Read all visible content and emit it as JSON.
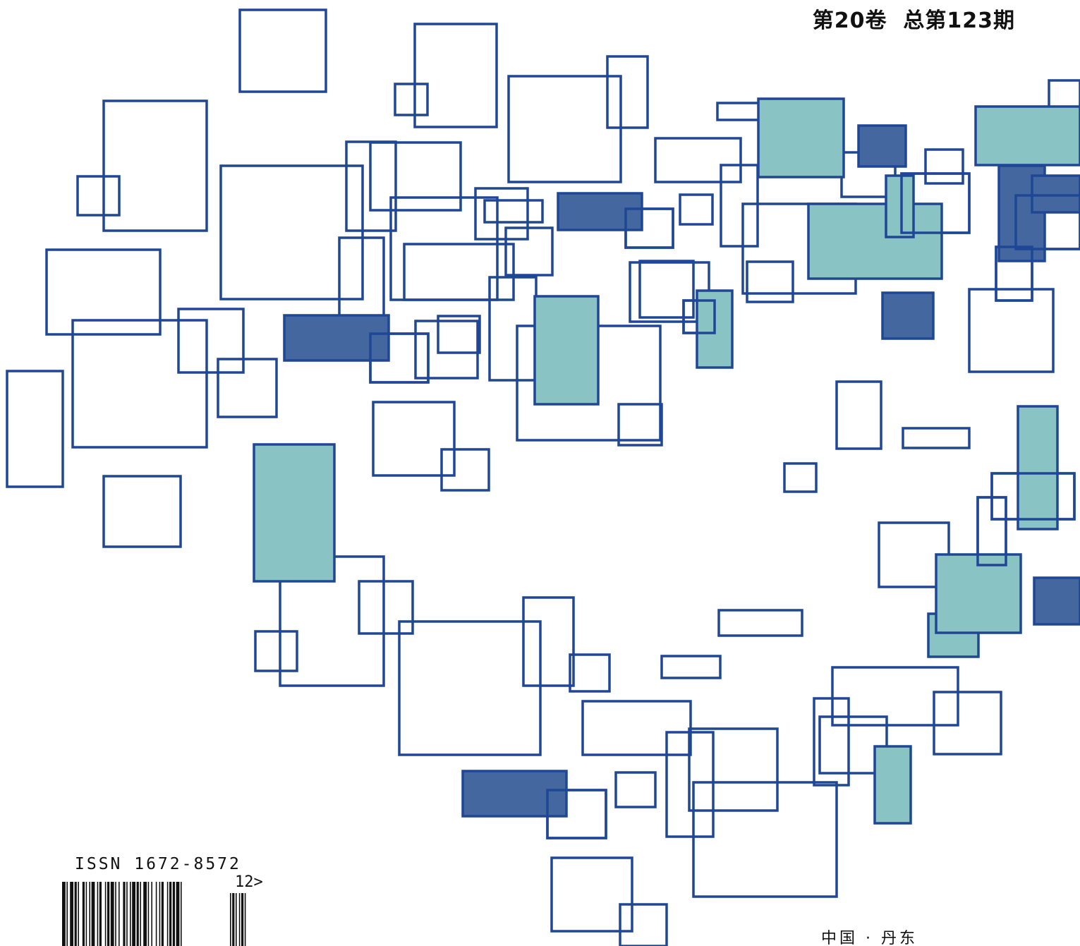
{
  "cover": {
    "volume_issue": "第20卷  总第123期",
    "issn": "ISSN 1672-8572",
    "addon": "12>",
    "place": "中国 · 丹东"
  },
  "colors": {
    "outline": "#1f4796",
    "teal_fill": "#89c3c4",
    "blue_fill": "#45679f",
    "text": "#111111"
  }
}
